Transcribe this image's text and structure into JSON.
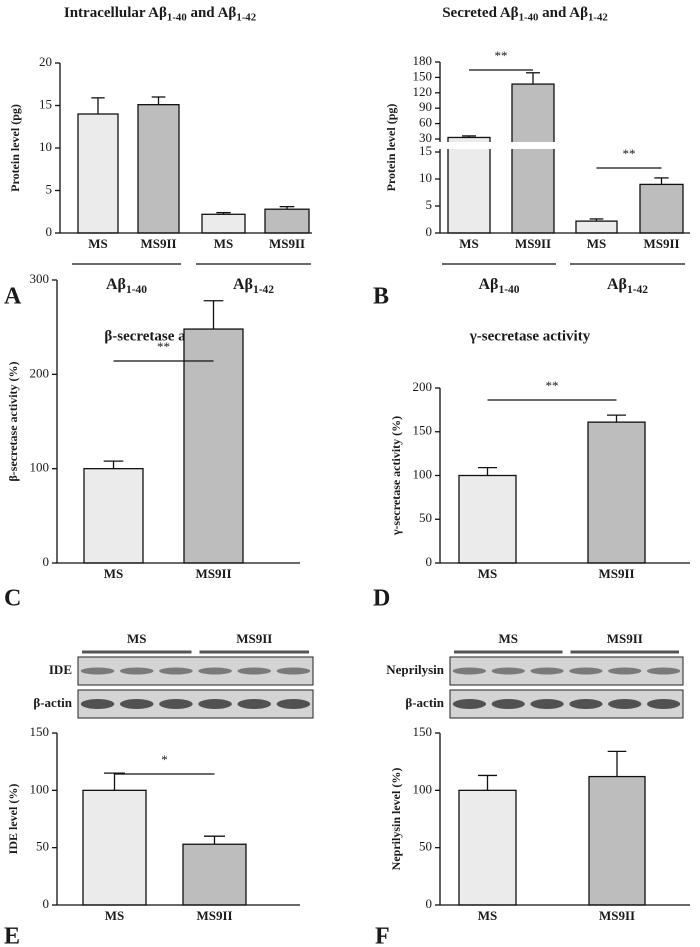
{
  "chart_data": [
    {
      "type": "bar",
      "label": "A",
      "title": [
        "Intracellular Aβ",
        "1-40",
        " and Aβ",
        "1-42"
      ],
      "ylabel": "Protein level (pg)",
      "categories": [
        "MS",
        "MS9II",
        "MS",
        "MS9II"
      ],
      "groups": [
        [
          "Aβ",
          "1-40"
        ],
        [
          "Aβ",
          "1-42"
        ]
      ],
      "values": [
        14,
        15.1,
        2.2,
        2.8
      ],
      "errors": [
        1.9,
        0.9,
        0.2,
        0.3
      ],
      "colors": [
        "#ebebeb",
        "#bdbdbd",
        "#ebebeb",
        "#bdbdbd"
      ],
      "ylim": [
        0,
        20
      ],
      "yticks": [
        0,
        5,
        10,
        15,
        20
      ]
    },
    {
      "type": "bar",
      "label": "B",
      "title": [
        "Secreted Aβ",
        "1-40",
        " and Aβ",
        "1-42"
      ],
      "ylabel": "Protein level (pg)",
      "categories": [
        "MS",
        "MS9II",
        "MS",
        "MS9II"
      ],
      "groups": [
        [
          "Aβ",
          "1-40"
        ],
        [
          "Aβ",
          "1-42"
        ]
      ],
      "values": [
        33,
        137,
        2.2,
        9
      ],
      "errors": [
        3,
        22,
        0.4,
        1.2
      ],
      "colors": [
        "#ebebeb",
        "#bdbdbd",
        "#ebebeb",
        "#bdbdbd"
      ],
      "ylim": [
        0,
        180
      ],
      "ybreak": [
        15,
        30
      ],
      "yticks": [
        0,
        5,
        10,
        15,
        30,
        60,
        90,
        120,
        150,
        180
      ],
      "significance": [
        {
          "pair": [
            0,
            1
          ],
          "label": "**"
        },
        {
          "pair": [
            2,
            3
          ],
          "label": "**"
        }
      ]
    },
    {
      "type": "bar",
      "label": "C",
      "title": "β-secretase activity",
      "ylabel": "β-secretase activity (%)",
      "categories": [
        "MS",
        "MS9II"
      ],
      "values": [
        100,
        248
      ],
      "errors": [
        8,
        30
      ],
      "colors": [
        "#ebebeb",
        "#bdbdbd"
      ],
      "ylim": [
        0,
        300
      ],
      "yticks": [
        0,
        100,
        200,
        300
      ],
      "significance": [
        {
          "pair": [
            0,
            1
          ],
          "label": "**"
        }
      ]
    },
    {
      "type": "bar",
      "label": "D",
      "title": "γ-secretase activity",
      "ylabel": "γ-secretase activity (%)",
      "categories": [
        "MS",
        "MS9II"
      ],
      "values": [
        100,
        161
      ],
      "errors": [
        9,
        8
      ],
      "colors": [
        "#ebebeb",
        "#bdbdbd"
      ],
      "ylim": [
        0,
        200
      ],
      "yticks": [
        0,
        50,
        100,
        150,
        200
      ],
      "significance": [
        {
          "pair": [
            0,
            1
          ],
          "label": "**"
        }
      ]
    },
    {
      "type": "bar",
      "label": "E",
      "ylabel": "IDE level (%)",
      "blot": {
        "rows": [
          "IDE",
          "β-actin"
        ],
        "groups": [
          "MS",
          "MS9II"
        ]
      },
      "categories": [
        "MS",
        "MS9II"
      ],
      "values": [
        100,
        53
      ],
      "errors": [
        15,
        7
      ],
      "colors": [
        "#ebebeb",
        "#bdbdbd"
      ],
      "ylim": [
        0,
        150
      ],
      "yticks": [
        0,
        50,
        100,
        150
      ],
      "significance": [
        {
          "pair": [
            0,
            1
          ],
          "label": "*"
        }
      ]
    },
    {
      "type": "bar",
      "label": "F",
      "ylabel": "Neprilysin level (%)",
      "blot": {
        "rows": [
          "Neprilysin",
          "β-actin"
        ],
        "groups": [
          "MS",
          "MS9II"
        ]
      },
      "categories": [
        "MS",
        "MS9II"
      ],
      "values": [
        100,
        112
      ],
      "errors": [
        13,
        22
      ],
      "colors": [
        "#ebebeb",
        "#bdbdbd"
      ],
      "ylim": [
        0,
        150
      ],
      "yticks": [
        0,
        50,
        100,
        150
      ]
    }
  ]
}
